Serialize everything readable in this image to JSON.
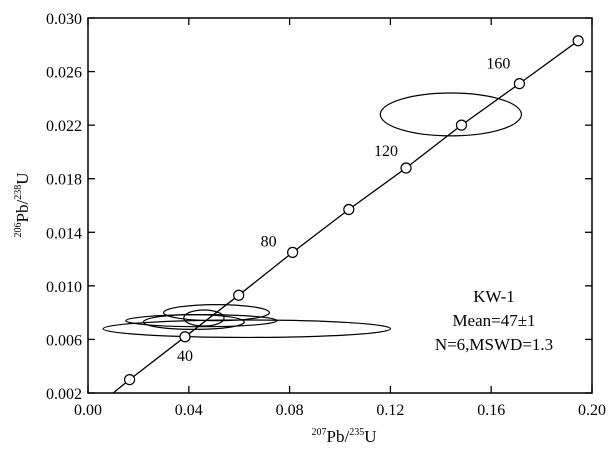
{
  "chart_data": {
    "type": "scatter",
    "title": "",
    "xlabel": {
      "mass1": "207",
      "elem1": "Pb/",
      "mass2": "235",
      "elem2": "U"
    },
    "ylabel": {
      "mass1": "206",
      "elem1": "Pb/",
      "mass2": "238",
      "elem2": "U"
    },
    "xlim": [
      0.0,
      0.2
    ],
    "ylim": [
      0.002,
      0.03
    ],
    "xticks": [
      0.0,
      0.04,
      0.08,
      0.12,
      0.16,
      0.2
    ],
    "xtick_labels": [
      "0.00",
      "0.04",
      "0.08",
      "0.12",
      "0.16",
      "0.20"
    ],
    "yticks": [
      0.002,
      0.006,
      0.01,
      0.014,
      0.018,
      0.022,
      0.026,
      0.03
    ],
    "ytick_labels": [
      "0.002",
      "0.006",
      "0.010",
      "0.014",
      "0.018",
      "0.022",
      "0.026",
      "0.030"
    ],
    "grid": false,
    "concordia": {
      "points": [
        {
          "x": 0.0165,
          "y": 0.003
        },
        {
          "x": 0.0385,
          "y": 0.0062
        },
        {
          "x": 0.0598,
          "y": 0.0093
        },
        {
          "x": 0.0812,
          "y": 0.0125
        },
        {
          "x": 0.1035,
          "y": 0.0157
        },
        {
          "x": 0.1262,
          "y": 0.0188
        },
        {
          "x": 0.1482,
          "y": 0.022
        },
        {
          "x": 0.1712,
          "y": 0.0251
        },
        {
          "x": 0.1945,
          "y": 0.0283
        }
      ],
      "curve_start": {
        "x": 0.01,
        "y": 0.002
      },
      "age_labels": [
        {
          "text": "40",
          "x": 0.0385,
          "y": 0.0062
        },
        {
          "text": "80",
          "x": 0.0812,
          "y": 0.0125
        },
        {
          "text": "120",
          "x": 0.1262,
          "y": 0.0188
        },
        {
          "text": "160",
          "x": 0.1712,
          "y": 0.0251
        }
      ]
    },
    "ellipses": [
      {
        "cx": 0.063,
        "cy": 0.0068,
        "rx": 0.057,
        "ry": 0.00065,
        "angle": 0
      },
      {
        "cx": 0.045,
        "cy": 0.0074,
        "rx": 0.03,
        "ry": 0.00045,
        "angle": 0
      },
      {
        "cx": 0.051,
        "cy": 0.008,
        "rx": 0.021,
        "ry": 0.0006,
        "angle": 0
      },
      {
        "cx": 0.042,
        "cy": 0.0073,
        "rx": 0.02,
        "ry": 0.00055,
        "angle": 0
      },
      {
        "cx": 0.046,
        "cy": 0.0076,
        "rx": 0.008,
        "ry": 0.0006,
        "angle": 0
      },
      {
        "cx": 0.144,
        "cy": 0.0228,
        "rx": 0.028,
        "ry": 0.0016,
        "angle": 0
      }
    ],
    "inset_text": {
      "sample": "KW-1",
      "mean": "Mean=47±1",
      "stats": "N=6,MSWD=1.3"
    }
  }
}
